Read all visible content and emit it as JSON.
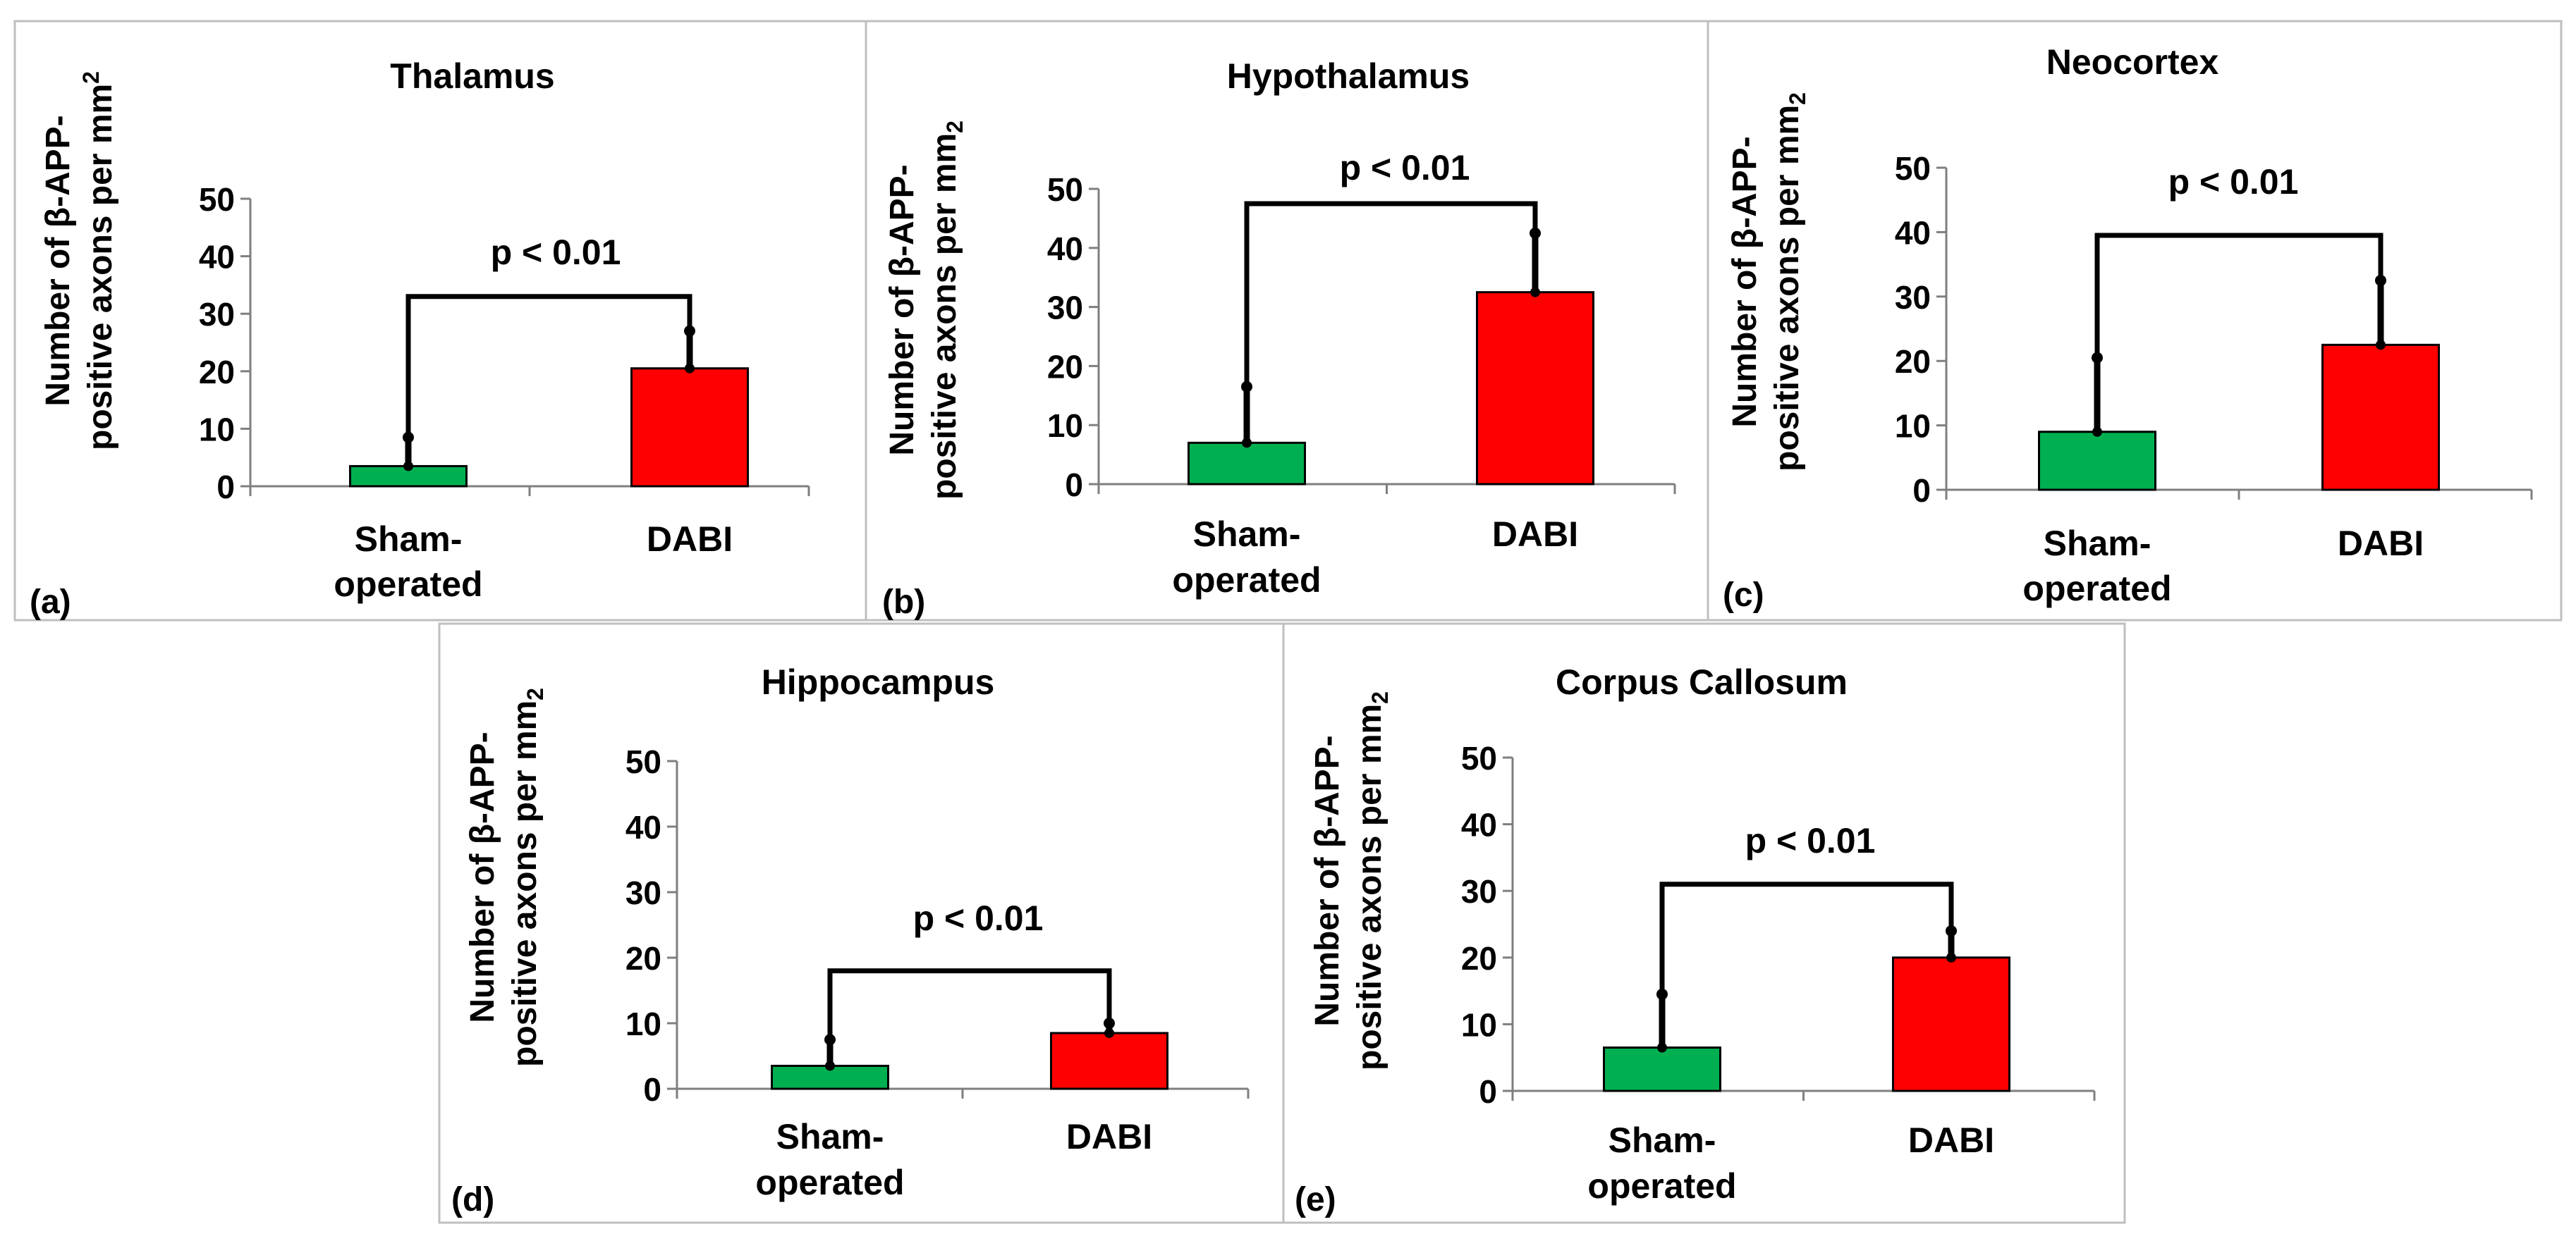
{
  "figure": {
    "panels": [
      {
        "label": "(a)",
        "title": "Thalamus",
        "ylabel_line1": "Number of β-APP-",
        "ylabel_line2": "positive axons per mm",
        "ylabel_exp": "2",
        "exp_style": "super",
        "significance": "p < 0.01"
      },
      {
        "label": "(b)",
        "title": "Hypothalamus",
        "ylabel_line1": "Number of β-APP-",
        "ylabel_line2": "positive axons per mm",
        "ylabel_exp": "2",
        "exp_style": "sub",
        "significance": "p < 0.01"
      },
      {
        "label": "(c)",
        "title": "Neocortex",
        "ylabel_line1": "Number of β-APP-",
        "ylabel_line2": "positive axons per mm",
        "ylabel_exp": "2",
        "exp_style": "sub",
        "significance": "p < 0.01"
      },
      {
        "label": "(d)",
        "title": "Hippocampus",
        "ylabel_line1": "Number of β-APP-",
        "ylabel_line2": "positive axons per mm",
        "ylabel_exp": "2",
        "exp_style": "sub",
        "significance": "p < 0.01"
      },
      {
        "label": "(e)",
        "title": "Corpus Callosum",
        "ylabel_line1": "Number of β-APP-",
        "ylabel_line2": "positive axons per mm",
        "ylabel_exp": "2",
        "exp_style": "sub",
        "significance": "p < 0.01"
      }
    ]
  },
  "chart_data": [
    {
      "type": "bar",
      "title": "Thalamus",
      "categories": [
        [
          "Sham-",
          "operated"
        ],
        [
          "DABI"
        ]
      ],
      "values": [
        3.5,
        20.5
      ],
      "error_upper": [
        8.5,
        27
      ],
      "bracket_y": 33,
      "colors": [
        "#00b050",
        "#ff0000"
      ],
      "ylim": [
        0,
        50
      ],
      "yticks": [
        0,
        10,
        20,
        30,
        40,
        50
      ],
      "ylabel": "Number of β-APP-positive axons per mm2"
    },
    {
      "type": "bar",
      "title": "Hypothalamus",
      "categories": [
        [
          "Sham-",
          "operated"
        ],
        [
          "DABI"
        ]
      ],
      "values": [
        7,
        32.5
      ],
      "error_upper": [
        16.5,
        42.5
      ],
      "bracket_y": 47.5,
      "colors": [
        "#00b050",
        "#ff0000"
      ],
      "ylim": [
        0,
        50
      ],
      "yticks": [
        0,
        10,
        20,
        30,
        40,
        50
      ],
      "ylabel": "Number of β-APP-positive axons per mm2"
    },
    {
      "type": "bar",
      "title": "Neocortex",
      "categories": [
        [
          "Sham-",
          "operated"
        ],
        [
          "DABI"
        ]
      ],
      "values": [
        9,
        22.5
      ],
      "error_upper": [
        20.5,
        32.5
      ],
      "bracket_y": 39.5,
      "colors": [
        "#00b050",
        "#ff0000"
      ],
      "ylim": [
        0,
        50
      ],
      "yticks": [
        0,
        10,
        20,
        30,
        40,
        50
      ],
      "ylabel": "Number of β-APP-positive axons per mm2"
    },
    {
      "type": "bar",
      "title": "Hippocampus",
      "categories": [
        [
          "Sham-",
          "operated"
        ],
        [
          "DABI"
        ]
      ],
      "values": [
        3.5,
        8.5
      ],
      "error_upper": [
        7.5,
        10
      ],
      "bracket_y": 18,
      "colors": [
        "#00b050",
        "#ff0000"
      ],
      "ylim": [
        0,
        50
      ],
      "yticks": [
        0,
        10,
        20,
        30,
        40,
        50
      ],
      "ylabel": "Number of β-APP-positive axons per mm2"
    },
    {
      "type": "bar",
      "title": "Corpus Callosum",
      "categories": [
        [
          "Sham-",
          "operated"
        ],
        [
          "DABI"
        ]
      ],
      "values": [
        6.5,
        20
      ],
      "error_upper": [
        14.5,
        24
      ],
      "bracket_y": 31,
      "colors": [
        "#00b050",
        "#ff0000"
      ],
      "ylim": [
        0,
        50
      ],
      "yticks": [
        0,
        10,
        20,
        30,
        40,
        50
      ],
      "ylabel": "Number of β-APP-positive axons per mm2"
    }
  ]
}
